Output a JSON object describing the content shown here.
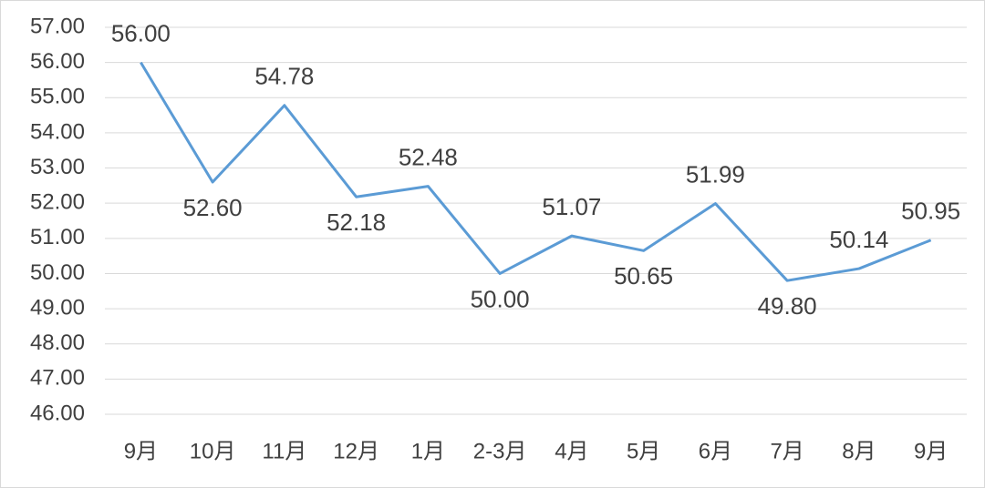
{
  "chart_data": {
    "type": "line",
    "categories": [
      "9月",
      "10月",
      "11月",
      "12月",
      "1月",
      "2-3月",
      "4月",
      "5月",
      "6月",
      "7月",
      "8月",
      "9月"
    ],
    "values": [
      56.0,
      52.6,
      54.78,
      52.18,
      52.48,
      50.0,
      51.07,
      50.65,
      51.99,
      49.8,
      50.14,
      50.95
    ],
    "value_labels": [
      "56.00",
      "52.60",
      "54.78",
      "52.18",
      "52.48",
      "50.00",
      "51.07",
      "50.65",
      "51.99",
      "49.80",
      "50.14",
      "50.95"
    ],
    "color": "#5b9bd5",
    "ylim": [
      46,
      57
    ],
    "yticks": [
      {
        "value": 46,
        "label": "46.00"
      },
      {
        "value": 47,
        "label": "47.00"
      },
      {
        "value": 48,
        "label": "48.00"
      },
      {
        "value": 49,
        "label": "49.00"
      },
      {
        "value": 50,
        "label": "50.00"
      },
      {
        "value": 51,
        "label": "51.00"
      },
      {
        "value": 52,
        "label": "52.00"
      },
      {
        "value": 53,
        "label": "53.00"
      },
      {
        "value": 54,
        "label": "54.00"
      },
      {
        "value": 55,
        "label": "55.00"
      },
      {
        "value": 56,
        "label": "56.00"
      },
      {
        "value": 57,
        "label": "57.00"
      }
    ],
    "grid": true
  }
}
